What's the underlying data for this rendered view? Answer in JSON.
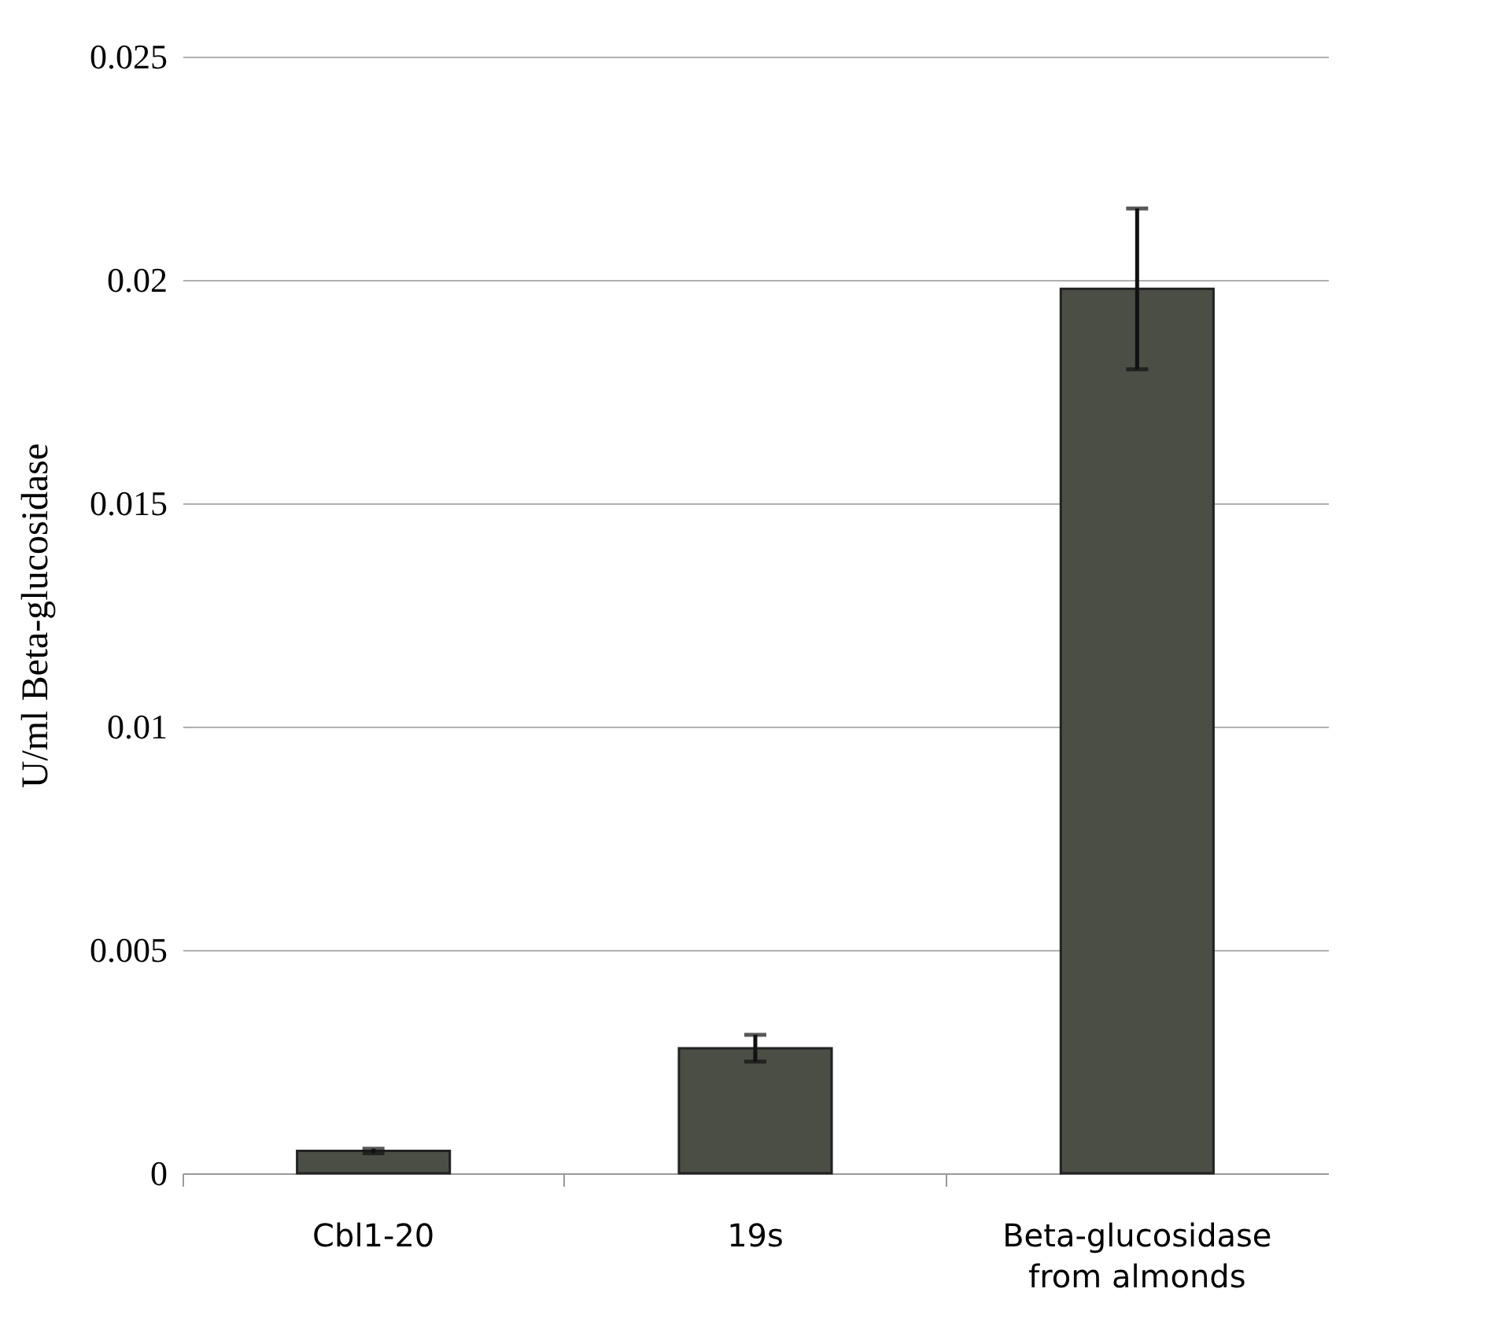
{
  "chart_data": {
    "type": "bar",
    "ylabel": "U/ml Beta-glucosidase",
    "categories": [
      "Cbl1-20",
      "19s",
      "Beta-glucosidase from almonds"
    ],
    "values": [
      0.0005,
      0.0028,
      0.0198
    ],
    "errors": [
      5e-05,
      0.0003,
      0.0018
    ],
    "color": "#4b4e44",
    "ylim": [
      0,
      0.025
    ],
    "yticks": [
      0,
      0.005,
      0.01,
      0.015,
      0.02,
      0.025
    ],
    "grid": "y"
  }
}
